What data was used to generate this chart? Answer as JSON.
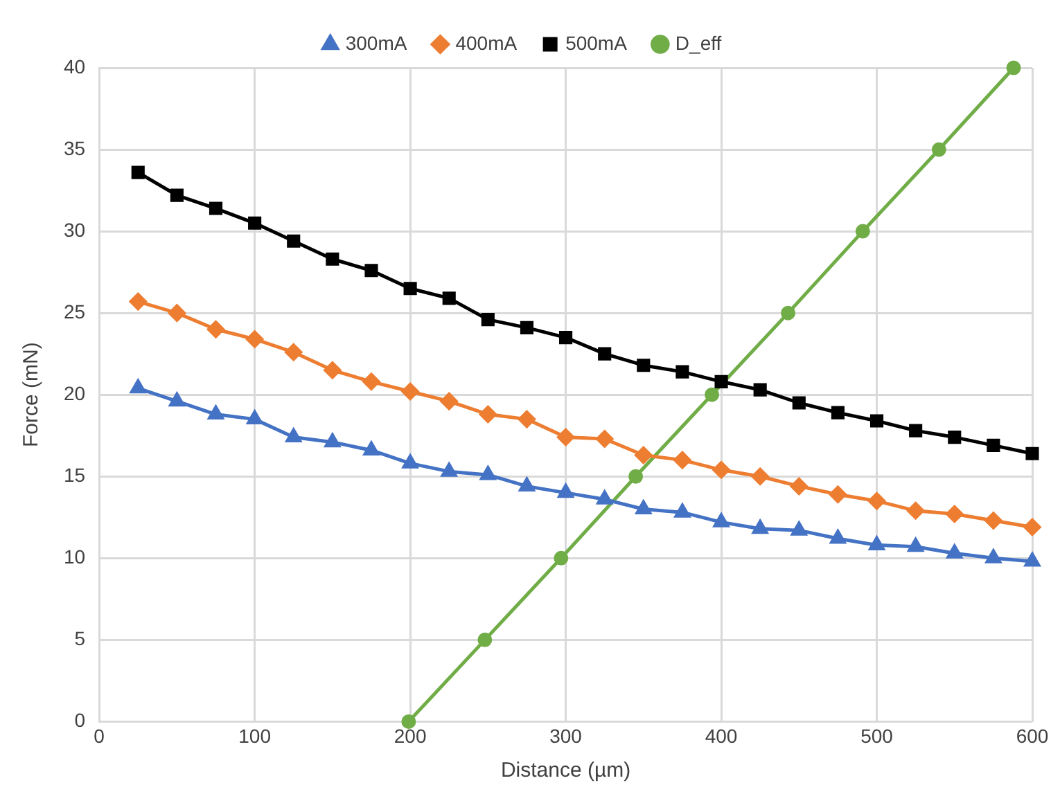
{
  "chart_data": {
    "type": "line",
    "xlabel": "Distance (µm)",
    "ylabel": "Force (mN)",
    "x": [
      25,
      50,
      75,
      100,
      125,
      150,
      175,
      200,
      225,
      250,
      275,
      300,
      325,
      350,
      375,
      400,
      425,
      450,
      475,
      500,
      525,
      550,
      575,
      600
    ],
    "series": [
      {
        "name": "300mA",
        "color": "#4472c4",
        "marker": "triangle",
        "values": [
          20.4,
          19.6,
          18.8,
          18.5,
          17.4,
          17.1,
          16.6,
          15.8,
          15.3,
          15.1,
          14.4,
          14.0,
          13.6,
          13.0,
          12.8,
          12.2,
          11.8,
          11.7,
          11.2,
          10.8,
          10.7,
          10.3,
          10.0,
          9.8
        ]
      },
      {
        "name": "400mA",
        "color": "#ed7d31",
        "marker": "diamond",
        "values": [
          25.7,
          25.0,
          24.0,
          23.4,
          22.6,
          21.5,
          20.8,
          20.2,
          19.6,
          18.8,
          18.5,
          17.4,
          17.3,
          16.3,
          16.0,
          15.4,
          15.0,
          14.4,
          13.9,
          13.5,
          12.9,
          12.7,
          12.3,
          11.9
        ]
      },
      {
        "name": "500mA",
        "color": "#000000",
        "marker": "square",
        "values": [
          33.6,
          32.2,
          31.4,
          30.5,
          29.4,
          28.3,
          27.6,
          26.5,
          25.9,
          24.6,
          24.1,
          23.5,
          22.5,
          21.8,
          21.4,
          20.8,
          20.3,
          19.5,
          18.9,
          18.4,
          17.8,
          17.4,
          16.9,
          16.4
        ]
      },
      {
        "name": "D_eff",
        "color": "#70ad47",
        "marker": "circle",
        "x": [
          199,
          248,
          297,
          345,
          394,
          443,
          491,
          540,
          588
        ],
        "values": [
          0,
          5,
          10,
          15,
          20,
          25,
          30,
          35,
          40
        ]
      }
    ],
    "xlim": [
      0,
      600
    ],
    "xticks": [
      0,
      100,
      200,
      300,
      400,
      500,
      600
    ],
    "ylim": [
      0,
      40
    ],
    "yticks": [
      0,
      5,
      10,
      15,
      20,
      25,
      30,
      35,
      40
    ],
    "grid": true,
    "legend": "top",
    "line_style": "solid"
  }
}
